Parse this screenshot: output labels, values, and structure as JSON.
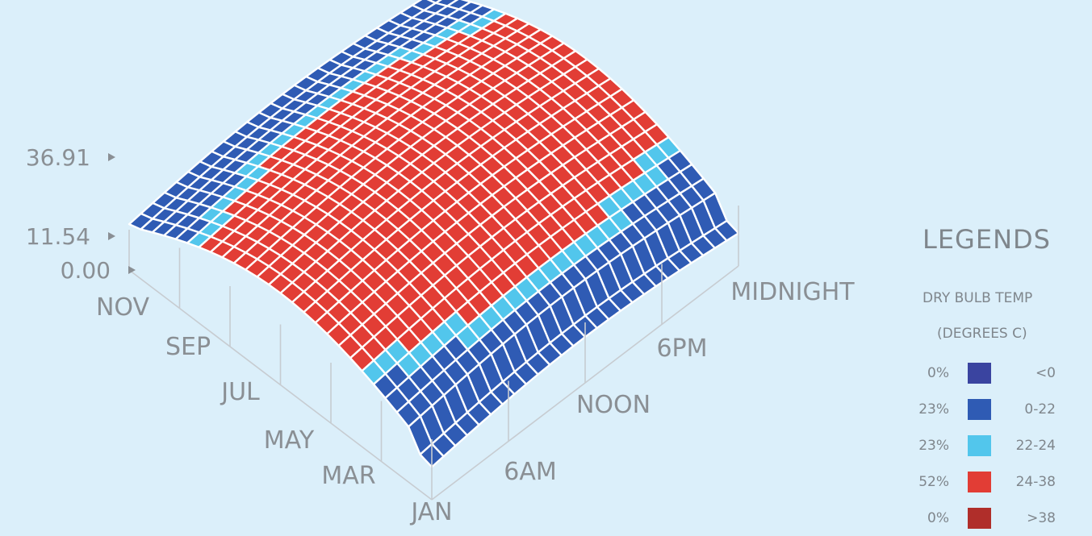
{
  "chart_data": {
    "type": "surface3d",
    "x_axis_ticks": [
      "JAN",
      "MAR",
      "MAY",
      "JUL",
      "SEP",
      "NOV"
    ],
    "y_axis_ticks": [
      "6AM",
      "NOON",
      "6PM",
      "MIDNIGHT"
    ],
    "z_axis_ticks": [
      "36.91",
      "11.54",
      "0.00"
    ],
    "z_range": [
      0.0,
      36.91
    ],
    "bands": [
      {
        "range": "<0",
        "percent": "0%",
        "color": "#3a44a0"
      },
      {
        "range": "0-22",
        "percent": "23%",
        "color": "#2f5bb4"
      },
      {
        "range": "22-24",
        "percent": "23%",
        "color": "#52c6ec"
      },
      {
        "range": "24-38",
        "percent": "52%",
        "color": "#e23d35"
      },
      {
        "range": ">38",
        "percent": "0%",
        "color": "#b02e2a"
      }
    ]
  },
  "legend": {
    "title": "LEGENDS",
    "subtitle1": "DRY BULB TEMP",
    "subtitle2": "(DEGREES C)"
  },
  "colors": {
    "background": "#dbeffa",
    "grid": "#ffffff",
    "axis": "#c7ccd1",
    "text": "#8a8f94"
  }
}
